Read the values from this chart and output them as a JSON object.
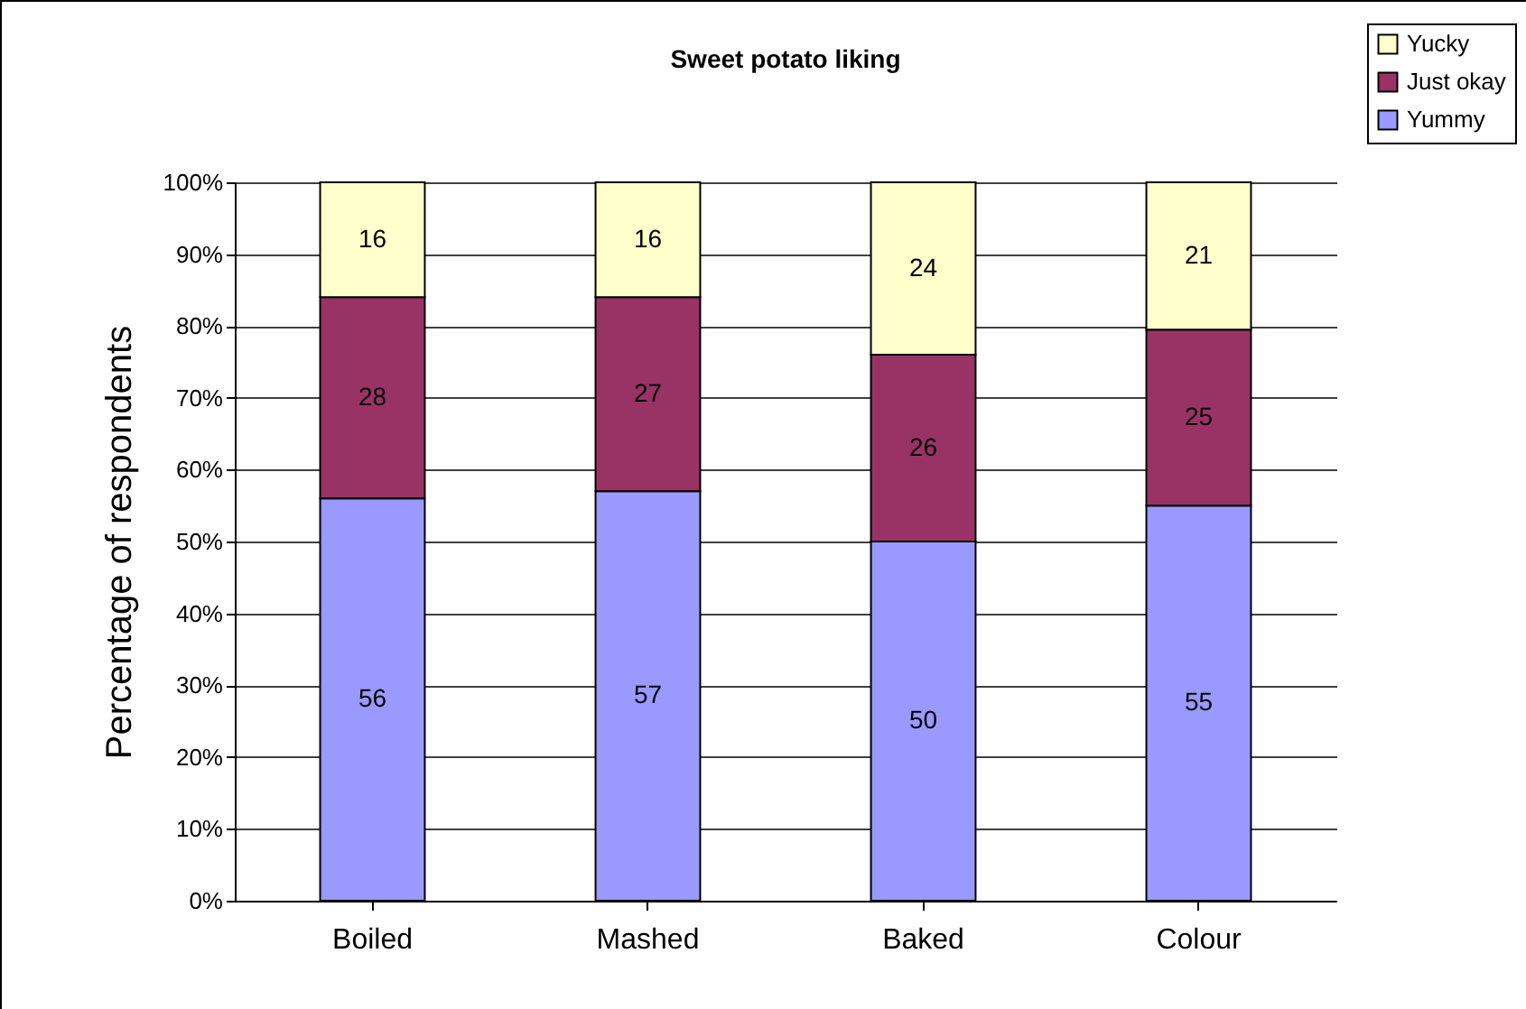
{
  "chart_data": {
    "type": "bar",
    "title": "Sweet potato liking",
    "ylabel": "Percentage of respondents",
    "categories": [
      "Boiled",
      "Mashed",
      "Baked",
      "Colour"
    ],
    "stacked": true,
    "legend": "top right",
    "grid": "y",
    "ylim": [
      0,
      100
    ],
    "yticks": [
      {
        "value": 0,
        "label": "0%"
      },
      {
        "value": 10,
        "label": "10%"
      },
      {
        "value": 20,
        "label": "20%"
      },
      {
        "value": 30,
        "label": "30%"
      },
      {
        "value": 40,
        "label": "40%"
      },
      {
        "value": 50,
        "label": "50%"
      },
      {
        "value": 60,
        "label": "60%"
      },
      {
        "value": 70,
        "label": "70%"
      },
      {
        "value": 80,
        "label": "80%"
      },
      {
        "value": 90,
        "label": "90%"
      },
      {
        "value": 100,
        "label": "100%"
      }
    ],
    "series": [
      {
        "name": "Yummy",
        "color": "#9999ff",
        "values": [
          56,
          57,
          50,
          55
        ],
        "value_labels": [
          "56",
          "57",
          "50",
          "55"
        ]
      },
      {
        "name": "Just okay",
        "color": "#993366",
        "values": [
          28,
          27,
          26,
          24.5
        ],
        "value_labels": [
          "28",
          "27",
          "26",
          "25"
        ]
      },
      {
        "name": "Yucky",
        "color": "#ffffcc",
        "values": [
          16,
          16,
          24,
          20.5
        ],
        "value_labels": [
          "16",
          "16",
          "24",
          "21"
        ]
      }
    ]
  }
}
